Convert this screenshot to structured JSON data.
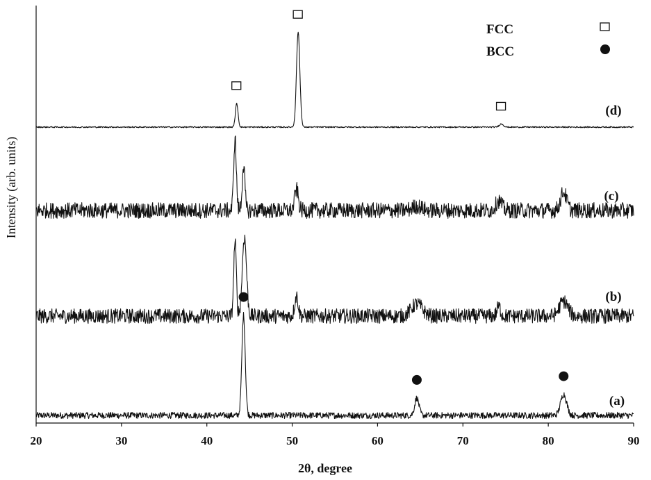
{
  "chart_data": {
    "type": "line",
    "xlabel": "2θ, degree",
    "ylabel": "Intensity (arb. units)",
    "xlim": [
      20,
      90
    ],
    "xticks": [
      20,
      30,
      40,
      50,
      60,
      70,
      80,
      90
    ],
    "x_tick_labels": [
      "20",
      "30",
      "40",
      "50",
      "60",
      "70",
      "80",
      "90"
    ],
    "y_ticks_shown": false,
    "grid": false,
    "legend": {
      "placement": "top-right",
      "entries": [
        {
          "label": "FCC",
          "marker": "open-square"
        },
        {
          "label": "BCC",
          "marker": "filled-circle"
        }
      ]
    },
    "series": [
      {
        "name": "(a)",
        "noise": 0.6,
        "peaks": [
          {
            "x": 44.3,
            "height": 19,
            "width": 0.28
          },
          {
            "x": 64.6,
            "height": 3.3,
            "width": 0.35
          },
          {
            "x": 81.8,
            "height": 4.0,
            "width": 0.5
          }
        ],
        "markers": [
          {
            "x": 44.3,
            "symbol": "BCC"
          },
          {
            "x": 64.6,
            "symbol": "BCC"
          },
          {
            "x": 81.8,
            "symbol": "BCC"
          }
        ]
      },
      {
        "name": "(b)",
        "noise": 1.4,
        "peaks": [
          {
            "x": 43.3,
            "height": 14,
            "width": 0.22
          },
          {
            "x": 44.4,
            "height": 15,
            "width": 0.35
          },
          {
            "x": 50.5,
            "height": 3.8,
            "width": 0.3
          },
          {
            "x": 64.6,
            "height": 2.3,
            "width": 0.9
          },
          {
            "x": 74.2,
            "height": 1.8,
            "width": 0.3
          },
          {
            "x": 81.8,
            "height": 2.8,
            "width": 0.7
          }
        ],
        "markers": []
      },
      {
        "name": "(c)",
        "noise": 1.5,
        "peaks": [
          {
            "x": 43.3,
            "height": 13.5,
            "width": 0.22
          },
          {
            "x": 44.3,
            "height": 8.5,
            "width": 0.22
          },
          {
            "x": 50.5,
            "height": 4.0,
            "width": 0.3
          },
          {
            "x": 64.6,
            "height": 0.8,
            "width": 0.8
          },
          {
            "x": 74.2,
            "height": 1.8,
            "width": 0.5
          },
          {
            "x": 81.8,
            "height": 3.5,
            "width": 0.5
          }
        ],
        "markers": []
      },
      {
        "name": "(d)",
        "noise": 0.12,
        "peaks": [
          {
            "x": 43.5,
            "height": 4.5,
            "width": 0.22
          },
          {
            "x": 50.7,
            "height": 18,
            "width": 0.28
          },
          {
            "x": 74.5,
            "height": 0.6,
            "width": 0.35
          }
        ],
        "markers": [
          {
            "x": 43.5,
            "symbol": "FCC"
          },
          {
            "x": 50.7,
            "symbol": "FCC"
          },
          {
            "x": 74.5,
            "symbol": "FCC"
          }
        ]
      }
    ]
  }
}
